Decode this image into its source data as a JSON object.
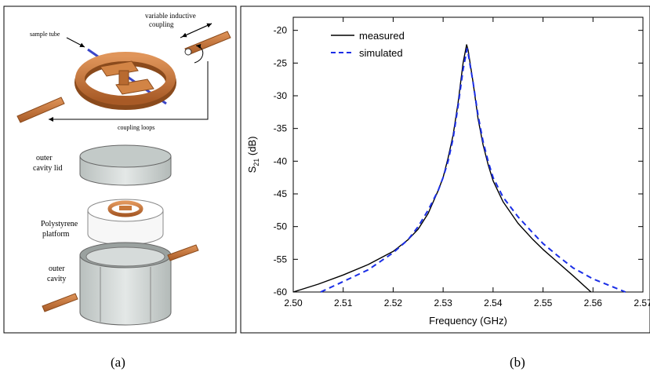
{
  "panel_a": {
    "label": "(a)",
    "annotations": {
      "sample_tube": "sample tube",
      "variable_coupling_line1": "variable inductive",
      "variable_coupling_line2": "coupling",
      "coupling_loops": "coupling loops",
      "outer_lid_line1": "outer",
      "outer_lid_line2": "cavity lid",
      "platform_line1": "Polystyrene",
      "platform_line2": "platform",
      "outer_cavity_line1": "outer",
      "outer_cavity_line2": "cavity"
    },
    "colors": {
      "copper": "#c8783a",
      "copper_dark": "#8a4a1c",
      "grey": "#c9cfcd",
      "tube": "#3a46c8"
    }
  },
  "panel_b": {
    "label": "(b)"
  },
  "chart_data": {
    "type": "line",
    "xlabel": "Frequency (GHz)",
    "ylabel_main": "S",
    "ylabel_sub": "21",
    "ylabel_unit": " (dB)",
    "xlim": [
      2.5,
      2.57
    ],
    "ylim": [
      -60,
      -18
    ],
    "x_ticks": [
      2.5,
      2.51,
      2.52,
      2.53,
      2.54,
      2.55,
      2.56,
      2.57
    ],
    "x_tick_labels": [
      "2.50",
      "2.51",
      "2.52",
      "2.53",
      "2.54",
      "2.55",
      "2.56",
      "2.57"
    ],
    "y_ticks": [
      -20,
      -25,
      -30,
      -35,
      -40,
      -45,
      -50,
      -55,
      -60
    ],
    "y_tick_labels": [
      "-20",
      "-25",
      "-30",
      "-35",
      "-40",
      "-45",
      "-50",
      "-55",
      "-60"
    ],
    "legend_position": "top-left",
    "series": [
      {
        "name": "measured",
        "color": "#000000",
        "style": "solid",
        "points": [
          [
            2.5,
            -60.0
          ],
          [
            2.505,
            -58.8
          ],
          [
            2.51,
            -57.4
          ],
          [
            2.515,
            -55.8
          ],
          [
            2.52,
            -53.8
          ],
          [
            2.523,
            -52.0
          ],
          [
            2.525,
            -50.4
          ],
          [
            2.527,
            -48.0
          ],
          [
            2.529,
            -44.5
          ],
          [
            2.53,
            -42.5
          ],
          [
            2.531,
            -39.5
          ],
          [
            2.532,
            -36.0
          ],
          [
            2.533,
            -31.0
          ],
          [
            2.534,
            -25.0
          ],
          [
            2.5347,
            -22.2
          ],
          [
            2.535,
            -23.0
          ],
          [
            2.536,
            -28.0
          ],
          [
            2.537,
            -33.5
          ],
          [
            2.538,
            -37.5
          ],
          [
            2.539,
            -40.5
          ],
          [
            2.54,
            -43.0
          ],
          [
            2.542,
            -46.2
          ],
          [
            2.545,
            -49.5
          ],
          [
            2.548,
            -52.0
          ],
          [
            2.55,
            -53.5
          ],
          [
            2.553,
            -55.5
          ],
          [
            2.556,
            -57.5
          ],
          [
            2.5596,
            -60.0
          ]
        ]
      },
      {
        "name": "simulated",
        "color": "#1a2ee6",
        "style": "dashed",
        "points": [
          [
            2.5055,
            -60.0
          ],
          [
            2.51,
            -58.4
          ],
          [
            2.515,
            -56.6
          ],
          [
            2.52,
            -54.0
          ],
          [
            2.523,
            -52.0
          ],
          [
            2.525,
            -50.0
          ],
          [
            2.527,
            -47.5
          ],
          [
            2.529,
            -44.5
          ],
          [
            2.53,
            -42.5
          ],
          [
            2.531,
            -40.0
          ],
          [
            2.532,
            -36.5
          ],
          [
            2.533,
            -31.5
          ],
          [
            2.534,
            -26.0
          ],
          [
            2.5348,
            -22.8
          ],
          [
            2.535,
            -23.5
          ],
          [
            2.536,
            -28.0
          ],
          [
            2.537,
            -33.0
          ],
          [
            2.538,
            -37.0
          ],
          [
            2.539,
            -40.0
          ],
          [
            2.54,
            -42.5
          ],
          [
            2.542,
            -45.5
          ],
          [
            2.545,
            -48.5
          ],
          [
            2.548,
            -51.0
          ],
          [
            2.55,
            -52.6
          ],
          [
            2.553,
            -54.5
          ],
          [
            2.556,
            -56.3
          ],
          [
            2.56,
            -58.0
          ],
          [
            2.5665,
            -60.0
          ]
        ]
      }
    ]
  }
}
